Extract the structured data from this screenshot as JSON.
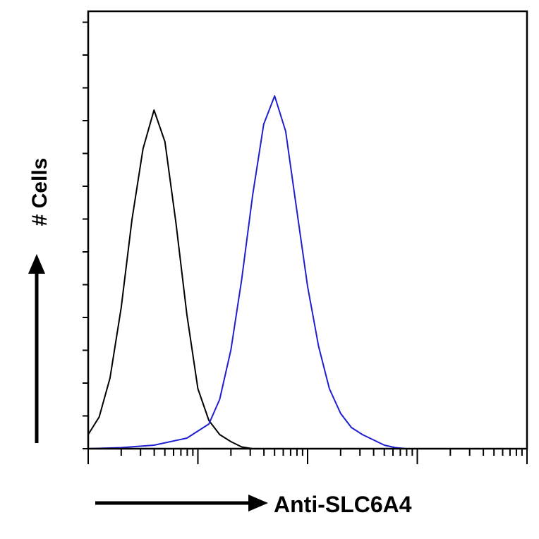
{
  "chart_data": {
    "type": "line",
    "title": "",
    "xlabel": "Anti-SLC6A4",
    "ylabel": "# Cells",
    "x_scale": "log",
    "xlim": [
      1,
      10000
    ],
    "ylim": [
      0,
      100
    ],
    "grid": false,
    "legend": "none",
    "series": [
      {
        "color": "#000000",
        "x": [
          1,
          1.26,
          1.58,
          2.0,
          2.51,
          3.16,
          3.98,
          5.01,
          6.31,
          7.94,
          10.0,
          12.6,
          15.8,
          20.0,
          25.1,
          31.6,
          39.8,
          50.1,
          63.1,
          79.4,
          100
        ],
        "values": [
          4,
          9,
          20,
          40,
          65,
          85,
          96,
          87,
          64,
          38,
          17,
          8,
          4,
          2,
          0.5,
          0,
          0,
          0,
          0,
          0,
          0
        ]
      },
      {
        "color": "#1f1fd0",
        "x": [
          1,
          2.0,
          3.98,
          7.94,
          12.6,
          15.8,
          20.0,
          25.1,
          31.6,
          39.8,
          50.1,
          63.1,
          79.4,
          100,
          126,
          158,
          200,
          251,
          316,
          398,
          501,
          631,
          794,
          1000,
          1259
        ],
        "values": [
          0,
          0.3,
          1,
          3,
          7,
          14,
          28,
          48,
          72,
          92,
          100,
          90,
          68,
          46,
          29,
          17,
          10,
          6,
          4,
          2.5,
          1,
          0.3,
          0,
          0,
          0
        ]
      }
    ]
  }
}
